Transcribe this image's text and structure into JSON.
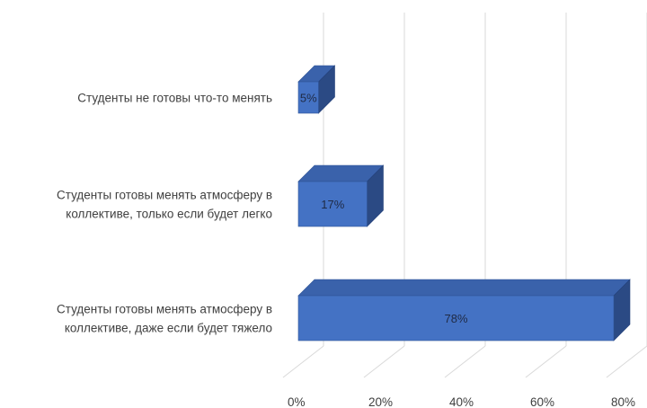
{
  "chart_data": {
    "type": "bar",
    "orientation": "horizontal",
    "three_d": true,
    "categories": [
      [
        "Студенты не готовы что-то менять"
      ],
      [
        "Студенты готовы менять атмосферу в",
        "коллективе, только если будет легко"
      ],
      [
        "Студенты готовы менять атмосферу в",
        "коллективе, даже если будет тяжело"
      ]
    ],
    "values": [
      5,
      17,
      78
    ],
    "data_labels": [
      "5%",
      "17%",
      "78%"
    ],
    "xlim": [
      0,
      80
    ],
    "xticks": [
      0,
      20,
      40,
      60,
      80
    ],
    "xtick_labels": [
      "0%",
      "20%",
      "40%",
      "60%",
      "80%"
    ],
    "grid": true,
    "legend": "none",
    "colors": {
      "bar_front": "#4472c4",
      "bar_top": "#3a62ab",
      "bar_side": "#2b4a84",
      "grid": "#d9d9d9"
    }
  }
}
